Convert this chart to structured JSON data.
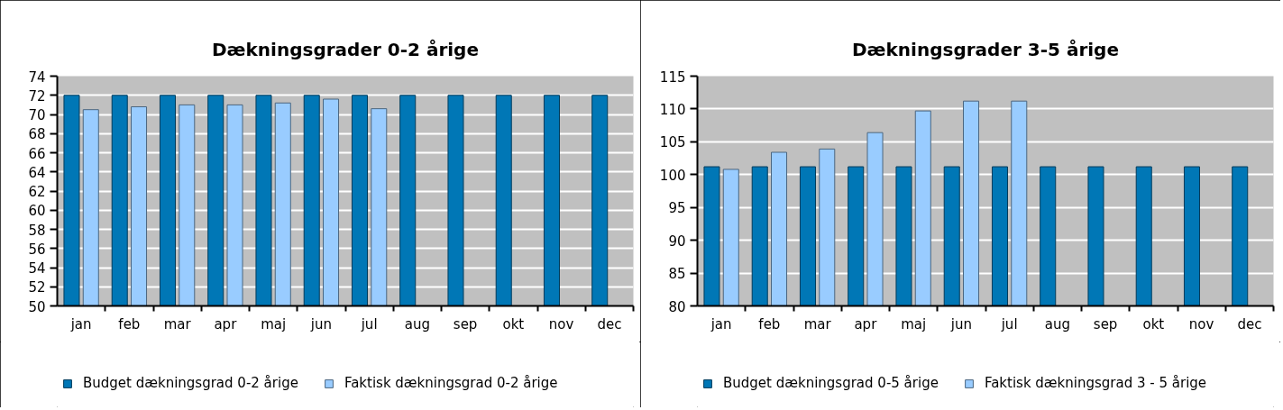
{
  "chart_data": [
    {
      "type": "bar",
      "title": "Dækningsgrader 0-2 årige",
      "categories": [
        "jan",
        "feb",
        "mar",
        "apr",
        "maj",
        "jun",
        "jul",
        "aug",
        "sep",
        "okt",
        "nov",
        "dec"
      ],
      "series": [
        {
          "name": "Budget dækningsgrad 0-2 årige",
          "color": "#0077b6",
          "values": [
            72,
            72,
            72,
            72,
            72,
            72,
            72,
            72,
            72,
            72,
            72,
            72
          ]
        },
        {
          "name": "Faktisk dækningsgrad 0-2 årige",
          "color": "#99ccff",
          "values": [
            70.5,
            70.8,
            71.0,
            71.0,
            71.2,
            71.6,
            70.6,
            null,
            null,
            null,
            null,
            null
          ]
        }
      ],
      "ylim": [
        50,
        74
      ],
      "yticks": [
        50,
        52,
        54,
        56,
        58,
        60,
        62,
        64,
        66,
        68,
        70,
        72,
        74
      ],
      "grid": "y",
      "legend": "bottom"
    },
    {
      "type": "bar",
      "title": "Dækningsgrader 3-5 årige",
      "categories": [
        "jan",
        "feb",
        "mar",
        "apr",
        "maj",
        "jun",
        "jul",
        "aug",
        "sep",
        "okt",
        "nov",
        "dec"
      ],
      "series": [
        {
          "name": "Budget dækningsgrad 0-5 årige",
          "color": "#0077b6",
          "values": [
            101.2,
            101.2,
            101.2,
            101.2,
            101.2,
            101.2,
            101.2,
            101.2,
            101.2,
            101.2,
            101.2,
            101.2
          ]
        },
        {
          "name": "Faktisk dækningsgrad 3 - 5 årige",
          "color": "#99ccff",
          "values": [
            100.8,
            103.4,
            103.9,
            106.4,
            109.7,
            111.2,
            111.2,
            null,
            null,
            null,
            null,
            null
          ]
        }
      ],
      "ylim": [
        80,
        115
      ],
      "yticks": [
        80,
        85,
        90,
        95,
        100,
        105,
        110,
        115
      ],
      "grid": "y",
      "legend": "bottom"
    }
  ]
}
